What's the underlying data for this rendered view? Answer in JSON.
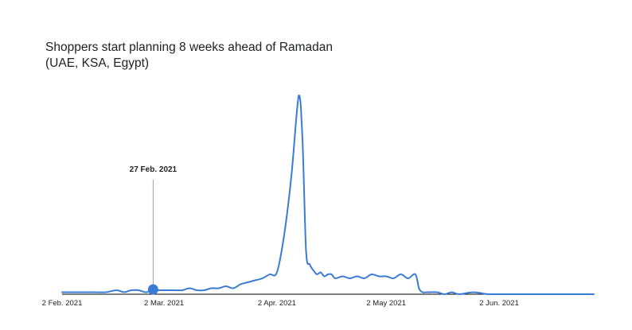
{
  "chart_data": {
    "type": "line",
    "title": "Shoppers start planning 8 weeks ahead of Ramadan",
    "subtitle": "(UAE, KSA, Egypt)",
    "xlabel": "",
    "ylabel": "",
    "x_ticks": [
      "2 Feb. 2021",
      "2 Mar. 2021",
      "2 Apr. 2021",
      "2 May 2021",
      "2 Jun. 2021"
    ],
    "xlim": [
      "2021-02-02",
      "2021-06-28"
    ],
    "ylim": [
      0,
      100
    ],
    "grid": false,
    "legend": "none",
    "annotation": {
      "date": "2021-02-27",
      "label": "27 Feb. 2021"
    },
    "colors": {
      "line": "#3a7bd5",
      "marker": "#3a7bd5",
      "axis": "#000000",
      "annotation": "#9e9e9e",
      "text": "#202124"
    },
    "series": [
      {
        "x": [
          "2021-02-02",
          "2021-02-05",
          "2021-02-08",
          "2021-02-11",
          "2021-02-14",
          "2021-02-17",
          "2021-02-19",
          "2021-02-21",
          "2021-02-23",
          "2021-02-25",
          "2021-02-27",
          "2021-03-01",
          "2021-03-03",
          "2021-03-05",
          "2021-03-07",
          "2021-03-09",
          "2021-03-11",
          "2021-03-13",
          "2021-03-15",
          "2021-03-17",
          "2021-03-19",
          "2021-03-21",
          "2021-03-23",
          "2021-03-25",
          "2021-03-27",
          "2021-03-29",
          "2021-03-31",
          "2021-04-02",
          "2021-04-04",
          "2021-04-06",
          "2021-04-08",
          "2021-04-09",
          "2021-04-10",
          "2021-04-11",
          "2021-04-12",
          "2021-04-13",
          "2021-04-14",
          "2021-04-15",
          "2021-04-16",
          "2021-04-17",
          "2021-04-18",
          "2021-04-20",
          "2021-04-22",
          "2021-04-24",
          "2021-04-26",
          "2021-04-28",
          "2021-04-30",
          "2021-05-02",
          "2021-05-04",
          "2021-05-06",
          "2021-05-08",
          "2021-05-10",
          "2021-05-11",
          "2021-05-12",
          "2021-05-13",
          "2021-05-14",
          "2021-05-16",
          "2021-05-18",
          "2021-05-20",
          "2021-05-22",
          "2021-05-26",
          "2021-05-30",
          "2021-06-03",
          "2021-06-08",
          "2021-06-14",
          "2021-06-20",
          "2021-06-28"
        ],
        "y": [
          1,
          1,
          1,
          1,
          1,
          2,
          1,
          2,
          2,
          1,
          2,
          2,
          2,
          2,
          2,
          3,
          2,
          2,
          3,
          3,
          4,
          3,
          5,
          6,
          7,
          8,
          10,
          11,
          30,
          60,
          100,
          78,
          22,
          15,
          12,
          10,
          11,
          9,
          10,
          10,
          8,
          9,
          8,
          9,
          8,
          10,
          9,
          9,
          8,
          10,
          8,
          10,
          3,
          1,
          1,
          1,
          1,
          0,
          1,
          0,
          1,
          0,
          0,
          0,
          0,
          0,
          0
        ]
      }
    ]
  }
}
